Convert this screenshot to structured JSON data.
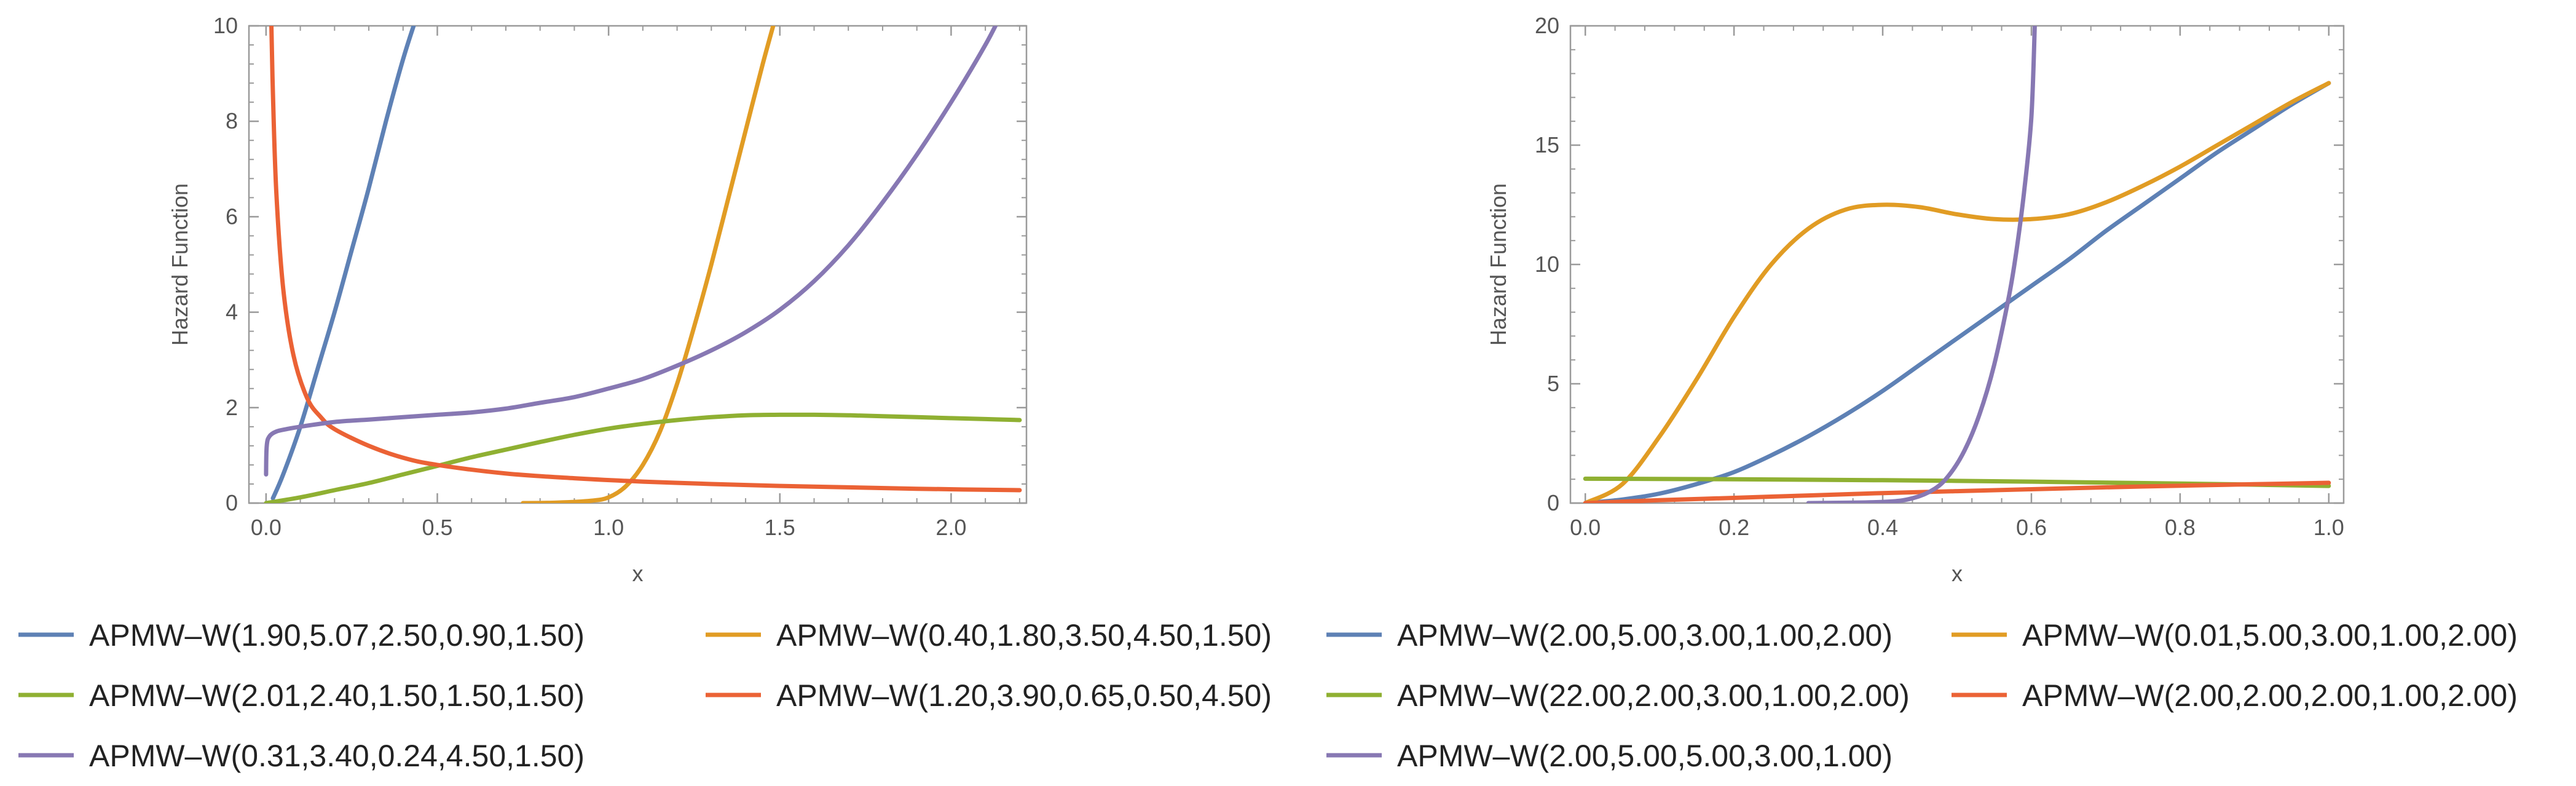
{
  "chart_data": [
    {
      "type": "line",
      "xlabel": "x",
      "ylabel": "Hazard Function",
      "xlim": [
        -0.05,
        2.22
      ],
      "ylim": [
        0,
        10
      ],
      "xticks": [
        0.0,
        0.5,
        1.0,
        1.5,
        2.0
      ],
      "xtick_labels": [
        "0.0",
        "0.5",
        "1.0",
        "1.5",
        "2.0"
      ],
      "yticks": [
        0,
        2,
        4,
        6,
        8,
        10
      ],
      "ytick_labels": [
        "0",
        "2",
        "4",
        "6",
        "8",
        "10"
      ],
      "series": [
        {
          "name": "APMW–W(1.90,5.07,2.50,0.90,1.50)",
          "color": "#5E81B5",
          "x": [
            0.02,
            0.05,
            0.1,
            0.15,
            0.2,
            0.25,
            0.3,
            0.35,
            0.4,
            0.44
          ],
          "y": [
            0.1,
            0.6,
            1.6,
            2.8,
            4.0,
            5.3,
            6.6,
            8.0,
            9.3,
            10.2
          ]
        },
        {
          "name": "APMW–W(0.40,1.80,3.50,4.50,1.50)",
          "color": "#E19C24",
          "x": [
            0.75,
            0.85,
            0.95,
            1.0,
            1.05,
            1.1,
            1.15,
            1.2,
            1.25,
            1.3,
            1.35,
            1.4,
            1.45,
            1.5
          ],
          "y": [
            0.0,
            0.01,
            0.05,
            0.12,
            0.35,
            0.8,
            1.5,
            2.5,
            3.7,
            5.0,
            6.4,
            7.8,
            9.2,
            10.5
          ]
        },
        {
          "name": "APMW–W(2.01,2.40,1.50,1.50,1.50)",
          "color": "#8FB032",
          "x": [
            0.0,
            0.1,
            0.2,
            0.3,
            0.4,
            0.5,
            0.6,
            0.7,
            0.8,
            0.9,
            1.0,
            1.1,
            1.2,
            1.3,
            1.4,
            1.5,
            1.6,
            1.7,
            1.8,
            1.9,
            2.0,
            2.1,
            2.2
          ],
          "y": [
            0.0,
            0.12,
            0.27,
            0.42,
            0.6,
            0.78,
            0.96,
            1.12,
            1.28,
            1.43,
            1.56,
            1.66,
            1.74,
            1.8,
            1.84,
            1.85,
            1.85,
            1.84,
            1.82,
            1.8,
            1.78,
            1.76,
            1.74
          ]
        },
        {
          "name": "APMW–W(1.20,3.90,0.65,0.50,4.50)",
          "color": "#EB6235",
          "x": [
            0.015,
            0.02,
            0.03,
            0.05,
            0.08,
            0.12,
            0.16,
            0.2,
            0.3,
            0.4,
            0.5,
            0.7,
            0.9,
            1.1,
            1.3,
            1.5,
            1.7,
            1.9,
            2.2
          ],
          "y": [
            10.2,
            8.6,
            6.5,
            4.5,
            3.1,
            2.2,
            1.8,
            1.55,
            1.2,
            0.95,
            0.8,
            0.62,
            0.52,
            0.45,
            0.4,
            0.36,
            0.33,
            0.3,
            0.27
          ]
        },
        {
          "name": "APMW–W(0.31,3.40,0.24,4.50,1.50)",
          "color": "#8778B3",
          "x": [
            0.0,
            0.002,
            0.01,
            0.03,
            0.06,
            0.1,
            0.2,
            0.3,
            0.4,
            0.5,
            0.6,
            0.7,
            0.8,
            0.9,
            1.0,
            1.1,
            1.2,
            1.3,
            1.4,
            1.5,
            1.6,
            1.7,
            1.8,
            1.9,
            2.0,
            2.1,
            2.15
          ],
          "y": [
            0.6,
            1.2,
            1.4,
            1.5,
            1.55,
            1.6,
            1.7,
            1.75,
            1.8,
            1.85,
            1.9,
            1.98,
            2.1,
            2.22,
            2.4,
            2.6,
            2.88,
            3.2,
            3.58,
            4.05,
            4.65,
            5.4,
            6.3,
            7.3,
            8.4,
            9.6,
            10.3
          ]
        }
      ]
    },
    {
      "type": "line",
      "xlabel": "x",
      "ylabel": "Hazard Function",
      "xlim": [
        -0.02,
        1.02
      ],
      "ylim": [
        0,
        20
      ],
      "xticks": [
        0.0,
        0.2,
        0.4,
        0.6,
        0.8,
        1.0
      ],
      "xtick_labels": [
        "0.0",
        "0.2",
        "0.4",
        "0.6",
        "0.8",
        "1.0"
      ],
      "yticks": [
        0,
        5,
        10,
        15,
        20
      ],
      "ytick_labels": [
        "0",
        "5",
        "10",
        "15",
        "20"
      ],
      "series": [
        {
          "name": "APMW–W(2.00,5.00,3.00,1.00,2.00)",
          "color": "#5E81B5",
          "x": [
            0.0,
            0.05,
            0.1,
            0.15,
            0.2,
            0.25,
            0.3,
            0.35,
            0.4,
            0.45,
            0.5,
            0.55,
            0.6,
            0.65,
            0.7,
            0.75,
            0.8,
            0.85,
            0.9,
            0.95,
            1.0
          ],
          "y": [
            0.0,
            0.15,
            0.4,
            0.8,
            1.3,
            2.0,
            2.8,
            3.7,
            4.7,
            5.8,
            6.9,
            8.0,
            9.1,
            10.2,
            11.4,
            12.5,
            13.6,
            14.7,
            15.7,
            16.7,
            17.6
          ]
        },
        {
          "name": "APMW–W(0.01,5.00,3.00,1.00,2.00)",
          "color": "#E19C24",
          "x": [
            0.0,
            0.05,
            0.1,
            0.15,
            0.2,
            0.25,
            0.3,
            0.35,
            0.4,
            0.45,
            0.5,
            0.55,
            0.6,
            0.65,
            0.7,
            0.75,
            0.8,
            0.85,
            0.9,
            0.95,
            1.0
          ],
          "y": [
            0.0,
            0.8,
            2.8,
            5.2,
            7.8,
            10.0,
            11.5,
            12.3,
            12.5,
            12.4,
            12.1,
            11.9,
            11.9,
            12.1,
            12.6,
            13.3,
            14.1,
            15.0,
            15.9,
            16.8,
            17.6
          ]
        },
        {
          "name": "APMW–W(22.00,2.00,3.00,1.00,2.00)",
          "color": "#8FB032",
          "x": [
            0.0,
            0.2,
            0.4,
            0.6,
            0.8,
            1.0
          ],
          "y": [
            1.02,
            1.0,
            0.96,
            0.9,
            0.82,
            0.72
          ]
        },
        {
          "name": "APMW–W(2.00,2.00,2.00,1.00,2.00)",
          "color": "#EB6235",
          "x": [
            0.0,
            0.1,
            0.2,
            0.3,
            0.4,
            0.5,
            0.6,
            0.7,
            0.8,
            0.9,
            1.0
          ],
          "y": [
            0.0,
            0.12,
            0.22,
            0.32,
            0.42,
            0.5,
            0.58,
            0.66,
            0.73,
            0.79,
            0.85
          ]
        },
        {
          "name": "APMW–W(2.00,5.00,5.00,3.00,1.00)",
          "color": "#8778B3",
          "x": [
            0.3,
            0.4,
            0.44,
            0.47,
            0.49,
            0.51,
            0.53,
            0.55,
            0.57,
            0.58,
            0.59,
            0.6,
            0.605
          ],
          "y": [
            0.0,
            0.05,
            0.2,
            0.6,
            1.2,
            2.2,
            3.7,
            5.8,
            8.7,
            10.6,
            13.0,
            16.2,
            20.5
          ]
        }
      ]
    }
  ]
}
